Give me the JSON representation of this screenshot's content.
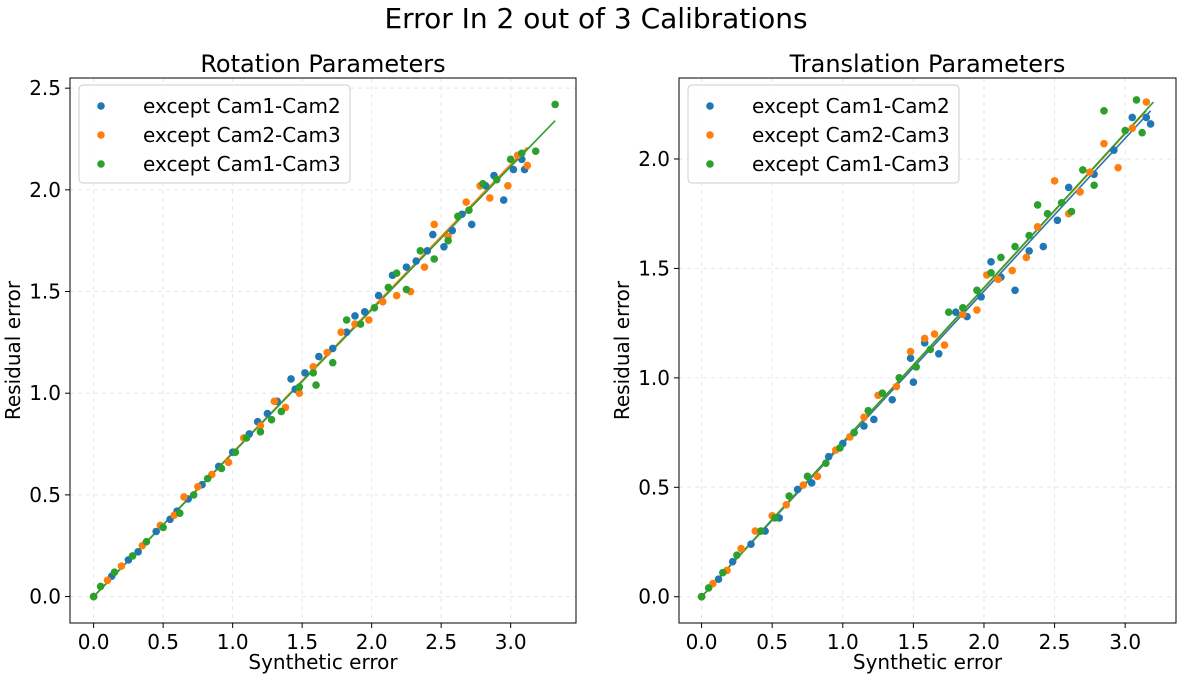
{
  "figure": {
    "title": "Error In 2 out of 3 Calibrations"
  },
  "colors": {
    "Cam1-Cam2": "#1f77b4",
    "Cam2-Cam3": "#ff7f0e",
    "Cam1-Cam3": "#2ca02c"
  },
  "chart_data": [
    {
      "type": "scatter",
      "title": "Rotation Parameters",
      "xlabel": "Synthetic error",
      "ylabel": "Residual error",
      "xlim": [
        -0.17,
        3.47
      ],
      "ylim": [
        -0.13,
        2.55
      ],
      "xticks": [
        0.0,
        0.5,
        1.0,
        1.5,
        2.0,
        2.5,
        3.0
      ],
      "yticks": [
        0.0,
        0.5,
        1.0,
        1.5,
        2.0,
        2.5
      ],
      "tick_labels_x": [
        "0.0",
        "0.5",
        "1.0",
        "1.5",
        "2.0",
        "2.5",
        "3.0"
      ],
      "tick_labels_y": [
        "0.0",
        "0.5",
        "1.0",
        "1.5",
        "2.0",
        "2.5"
      ],
      "grid": true,
      "legend_position": "top-left",
      "series": [
        {
          "name": "except Cam1-Cam2",
          "color": "#1f77b4",
          "x": [
            0.0,
            0.13,
            0.25,
            0.32,
            0.45,
            0.55,
            0.6,
            0.68,
            0.78,
            0.9,
            1.0,
            1.12,
            1.18,
            1.25,
            1.32,
            1.42,
            1.45,
            1.52,
            1.62,
            1.72,
            1.82,
            1.88,
            1.95,
            2.05,
            2.15,
            2.25,
            2.32,
            2.4,
            2.44,
            2.52,
            2.58,
            2.65,
            2.72,
            2.82,
            2.88,
            2.95,
            3.02,
            3.08,
            3.1
          ],
          "y": [
            0.0,
            0.1,
            0.18,
            0.22,
            0.32,
            0.38,
            0.42,
            0.48,
            0.55,
            0.64,
            0.71,
            0.8,
            0.86,
            0.9,
            0.96,
            1.07,
            1.02,
            1.1,
            1.18,
            1.22,
            1.3,
            1.38,
            1.4,
            1.48,
            1.58,
            1.62,
            1.65,
            1.7,
            1.78,
            1.72,
            1.8,
            1.88,
            1.83,
            2.02,
            2.07,
            1.95,
            2.1,
            2.15,
            2.1
          ]
        },
        {
          "name": "except Cam2-Cam3",
          "color": "#ff7f0e",
          "x": [
            0.0,
            0.1,
            0.2,
            0.35,
            0.48,
            0.58,
            0.65,
            0.75,
            0.85,
            0.97,
            1.08,
            1.2,
            1.3,
            1.38,
            1.48,
            1.58,
            1.68,
            1.78,
            1.88,
            1.98,
            2.08,
            2.18,
            2.28,
            2.38,
            2.45,
            2.55,
            2.68,
            2.78,
            2.85,
            2.98,
            3.05,
            3.12
          ],
          "y": [
            0.0,
            0.08,
            0.15,
            0.25,
            0.35,
            0.4,
            0.49,
            0.54,
            0.6,
            0.66,
            0.78,
            0.84,
            0.96,
            0.93,
            1.0,
            1.13,
            1.2,
            1.3,
            1.34,
            1.36,
            1.45,
            1.48,
            1.5,
            1.62,
            1.83,
            1.77,
            1.94,
            2.02,
            1.96,
            2.02,
            2.17,
            2.12
          ]
        },
        {
          "name": "except Cam1-Cam3",
          "color": "#2ca02c",
          "x": [
            0.0,
            0.05,
            0.15,
            0.28,
            0.38,
            0.5,
            0.62,
            0.72,
            0.82,
            0.92,
            1.02,
            1.1,
            1.2,
            1.28,
            1.35,
            1.48,
            1.58,
            1.6,
            1.72,
            1.82,
            1.92,
            2.02,
            2.12,
            2.18,
            2.25,
            2.35,
            2.45,
            2.55,
            2.62,
            2.7,
            2.8,
            2.9,
            3.0,
            3.08,
            3.18,
            3.32
          ],
          "y": [
            0.0,
            0.05,
            0.12,
            0.2,
            0.27,
            0.34,
            0.41,
            0.5,
            0.58,
            0.63,
            0.71,
            0.78,
            0.81,
            0.87,
            0.91,
            1.03,
            1.1,
            1.04,
            1.15,
            1.36,
            1.34,
            1.42,
            1.52,
            1.59,
            1.51,
            1.7,
            1.66,
            1.75,
            1.87,
            1.9,
            2.03,
            2.05,
            2.15,
            2.18,
            2.19,
            2.42
          ]
        }
      ],
      "fit_lines": [
        {
          "name": "except Cam1-Cam2",
          "color": "#1f77b4",
          "x": [
            0.0,
            3.1
          ],
          "y": [
            0.0,
            2.19
          ]
        },
        {
          "name": "except Cam2-Cam3",
          "color": "#ff7f0e",
          "x": [
            0.0,
            3.12
          ],
          "y": [
            0.0,
            2.21
          ]
        },
        {
          "name": "except Cam1-Cam3",
          "color": "#2ca02c",
          "x": [
            0.0,
            3.32
          ],
          "y": [
            0.0,
            2.34
          ]
        }
      ]
    },
    {
      "type": "scatter",
      "title": "Translation Parameters",
      "xlabel": "Synthetic error",
      "ylabel": "Residual error",
      "xlim": [
        -0.16,
        3.36
      ],
      "ylim": [
        -0.12,
        2.37
      ],
      "xticks": [
        0.0,
        0.5,
        1.0,
        1.5,
        2.0,
        2.5,
        3.0
      ],
      "yticks": [
        0.0,
        0.5,
        1.0,
        1.5,
        2.0
      ],
      "tick_labels_x": [
        "0.0",
        "0.5",
        "1.0",
        "1.5",
        "2.0",
        "2.5",
        "3.0"
      ],
      "tick_labels_y": [
        "0.0",
        "0.5",
        "1.0",
        "1.5",
        "2.0"
      ],
      "grid": true,
      "legend_position": "top-left",
      "series": [
        {
          "name": "except Cam1-Cam2",
          "color": "#1f77b4",
          "x": [
            0.0,
            0.12,
            0.22,
            0.35,
            0.45,
            0.55,
            0.68,
            0.78,
            0.9,
            1.0,
            1.08,
            1.15,
            1.22,
            1.35,
            1.48,
            1.5,
            1.58,
            1.68,
            1.8,
            1.88,
            1.98,
            2.05,
            2.12,
            2.22,
            2.32,
            2.42,
            2.52,
            2.6,
            2.68,
            2.78,
            2.92,
            3.05,
            3.15,
            3.18
          ],
          "y": [
            0.0,
            0.08,
            0.16,
            0.24,
            0.3,
            0.36,
            0.49,
            0.52,
            0.64,
            0.7,
            0.75,
            0.78,
            0.81,
            0.9,
            1.09,
            0.98,
            1.16,
            1.11,
            1.3,
            1.28,
            1.37,
            1.53,
            1.46,
            1.4,
            1.58,
            1.6,
            1.72,
            1.87,
            1.85,
            1.93,
            2.04,
            2.19,
            2.19,
            2.16
          ]
        },
        {
          "name": "except Cam2-Cam3",
          "color": "#ff7f0e",
          "x": [
            0.0,
            0.08,
            0.18,
            0.28,
            0.38,
            0.5,
            0.6,
            0.72,
            0.82,
            0.95,
            1.05,
            1.15,
            1.25,
            1.38,
            1.48,
            1.58,
            1.65,
            1.72,
            1.85,
            1.95,
            2.02,
            2.1,
            2.2,
            2.3,
            2.38,
            2.5,
            2.6,
            2.68,
            2.75,
            2.85,
            2.95,
            3.05,
            3.15
          ],
          "y": [
            0.0,
            0.06,
            0.12,
            0.22,
            0.3,
            0.37,
            0.42,
            0.51,
            0.55,
            0.67,
            0.73,
            0.82,
            0.92,
            0.96,
            1.12,
            1.18,
            1.2,
            1.15,
            1.29,
            1.31,
            1.47,
            1.45,
            1.49,
            1.55,
            1.69,
            1.9,
            1.75,
            1.85,
            1.94,
            2.07,
            1.96,
            2.14,
            2.26
          ]
        },
        {
          "name": "except Cam1-Cam3",
          "color": "#2ca02c",
          "x": [
            0.0,
            0.05,
            0.15,
            0.25,
            0.42,
            0.52,
            0.62,
            0.75,
            0.88,
            0.98,
            1.08,
            1.18,
            1.28,
            1.4,
            1.52,
            1.62,
            1.75,
            1.85,
            1.95,
            2.05,
            2.12,
            2.22,
            2.32,
            2.38,
            2.45,
            2.55,
            2.62,
            2.7,
            2.78,
            2.85,
            3.0,
            3.08,
            3.12
          ],
          "y": [
            0.0,
            0.04,
            0.11,
            0.19,
            0.3,
            0.36,
            0.46,
            0.55,
            0.61,
            0.68,
            0.75,
            0.85,
            0.93,
            1.0,
            1.05,
            1.13,
            1.3,
            1.32,
            1.4,
            1.48,
            1.55,
            1.6,
            1.65,
            1.79,
            1.75,
            1.8,
            1.76,
            1.95,
            1.88,
            2.22,
            2.13,
            2.27,
            2.12
          ]
        }
      ],
      "fit_lines": [
        {
          "name": "except Cam1-Cam2",
          "color": "#1f77b4",
          "x": [
            0.0,
            3.18
          ],
          "y": [
            0.0,
            2.22
          ]
        },
        {
          "name": "except Cam2-Cam3",
          "color": "#ff7f0e",
          "x": [
            0.0,
            3.15
          ],
          "y": [
            0.0,
            2.22
          ]
        },
        {
          "name": "except Cam1-Cam3",
          "color": "#2ca02c",
          "x": [
            0.0,
            3.2
          ],
          "y": [
            0.0,
            2.26
          ]
        }
      ]
    }
  ]
}
